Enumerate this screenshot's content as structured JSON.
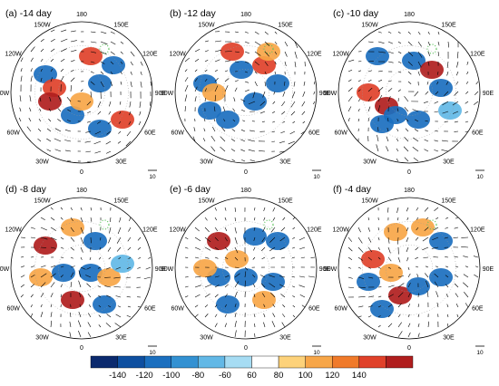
{
  "panels": [
    {
      "title": "(a) -14 day",
      "lon_labels": [
        "90W",
        "120W",
        "150W",
        "180",
        "150E",
        "120E",
        "90E",
        "60E",
        "30E",
        "0",
        "30W",
        "60W"
      ],
      "vector_ref": "10"
    },
    {
      "title": "(b) -12 day",
      "lon_labels": [
        "90W",
        "120W",
        "150W",
        "180",
        "150E",
        "120E",
        "90E",
        "60E",
        "30E",
        "0",
        "30W",
        "60W"
      ],
      "vector_ref": "10"
    },
    {
      "title": "(c) -10 day",
      "lon_labels": [
        "90W",
        "120W",
        "150W",
        "180",
        "150E",
        "120E",
        "90E",
        "60E",
        "30E",
        "0",
        "30W",
        "60W"
      ],
      "vector_ref": "10"
    },
    {
      "title": "(d) -8 day",
      "lon_labels": [
        "90W",
        "120W",
        "150W",
        "180",
        "150E",
        "120E",
        "90E",
        "60E",
        "30E",
        "0",
        "30W",
        "60W"
      ],
      "vector_ref": "10"
    },
    {
      "title": "(e) -6 day",
      "lon_labels": [
        "90W",
        "120W",
        "150W",
        "180",
        "150E",
        "120E",
        "90E",
        "60E",
        "30E",
        "0",
        "30W",
        "60W"
      ],
      "vector_ref": "10"
    },
    {
      "title": "(f) -4 day",
      "lon_labels": [
        "90W",
        "120W",
        "150W",
        "180",
        "150E",
        "120E",
        "90E",
        "60E",
        "30E",
        "0",
        "30W",
        "60W"
      ],
      "vector_ref": "10"
    }
  ],
  "colorbar": {
    "labels": [
      "-140",
      "-120",
      "-100",
      "-80",
      "-60",
      "60",
      "80",
      "100",
      "120",
      "140"
    ],
    "colors": [
      "#0b2a6e",
      "#0e4fa0",
      "#1b6fbf",
      "#3391d2",
      "#62b8e6",
      "#a6dcf3",
      "#ffffff",
      "#fdd27a",
      "#f7a648",
      "#f07a2a",
      "#e0412a",
      "#b01e1e"
    ]
  },
  "colors": {
    "positive": "#e0412a",
    "negative": "#1b6fbf",
    "significance": "#5cc45c"
  }
}
